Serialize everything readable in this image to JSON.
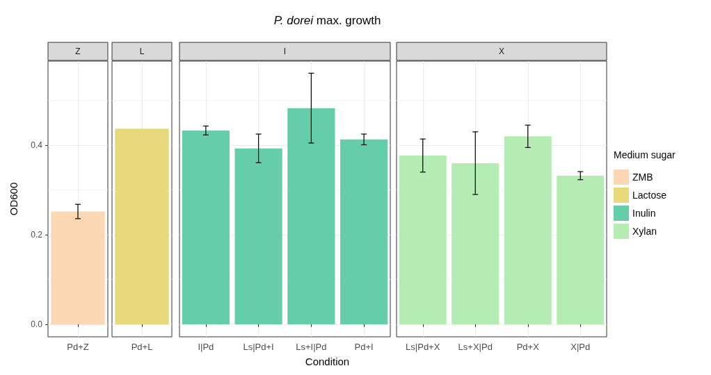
{
  "chart_data": [
    {
      "type": "bar",
      "subtitle": "Z",
      "ylabel": "OD600",
      "categories": [
        "Pd+Z"
      ],
      "series": [
        {
          "name": "ZMB",
          "color": "#fcd8b4",
          "values": [
            0.252
          ],
          "errors": [
            0.016
          ]
        }
      ],
      "ylim": [
        -0.028,
        0.588
      ],
      "yticks": [
        {
          "value": 0,
          "label": "0.0"
        },
        0.2,
        0.4
      ],
      "grid": true,
      "legend": "right",
      "legend_title": "Medium sugar"
    },
    {
      "type": "bar",
      "subtitle": "L",
      "categories": [
        "Pd+L"
      ],
      "series": [
        {
          "name": "Lactose",
          "color": "#e8d97c",
          "values": [
            0.437
          ]
        }
      ],
      "ylim": [
        -0.028,
        0.588
      ],
      "yticks": [
        {
          "value": 0,
          "label": null
        },
        {
          "value": 0.2,
          "label": null
        },
        {
          "value": 0.4,
          "label": null
        }
      ],
      "grid": true,
      "tick_labels": "x",
      "legend": "right"
    },
    {
      "type": "bar",
      "title": "P. dorei max. growth",
      "subtitle": "I",
      "xlabel": "Condition",
      "categories": [
        "I|Pd",
        "Ls|Pd+I",
        "Ls+I|Pd",
        "Pd+I"
      ],
      "series": [
        {
          "name": "Inulin",
          "color": "#66cdaa",
          "values": [
            0.433,
            0.393,
            0.483,
            0.413
          ],
          "errors": [
            0.01,
            0.032,
            0.078,
            0.012
          ]
        }
      ],
      "ylim": [
        -0.028,
        0.588
      ],
      "yticks": [
        {
          "value": 0,
          "label": null
        },
        {
          "value": 0.2,
          "label": null
        },
        {
          "value": 0.4,
          "label": null
        }
      ],
      "grid": true,
      "tick_labels": "x",
      "legend": "right"
    },
    {
      "type": "bar",
      "subtitle": "X",
      "categories": [
        "Ls|Pd+X",
        "Ls+X|Pd",
        "Pd+X",
        "X|Pd"
      ],
      "series": [
        {
          "name": "Xylan",
          "color": "#b4ecb4",
          "values": [
            0.377,
            0.36,
            0.42,
            0.332
          ],
          "errors": [
            0.037,
            0.07,
            0.025,
            0.009
          ]
        }
      ],
      "ylim": [
        -0.028,
        0.588
      ],
      "yticks": [
        {
          "value": 0,
          "label": null
        },
        {
          "value": 0.2,
          "label": null
        },
        {
          "value": 0.4,
          "label": null
        }
      ],
      "grid": true,
      "tick_labels": "x",
      "legend": "right"
    }
  ]
}
